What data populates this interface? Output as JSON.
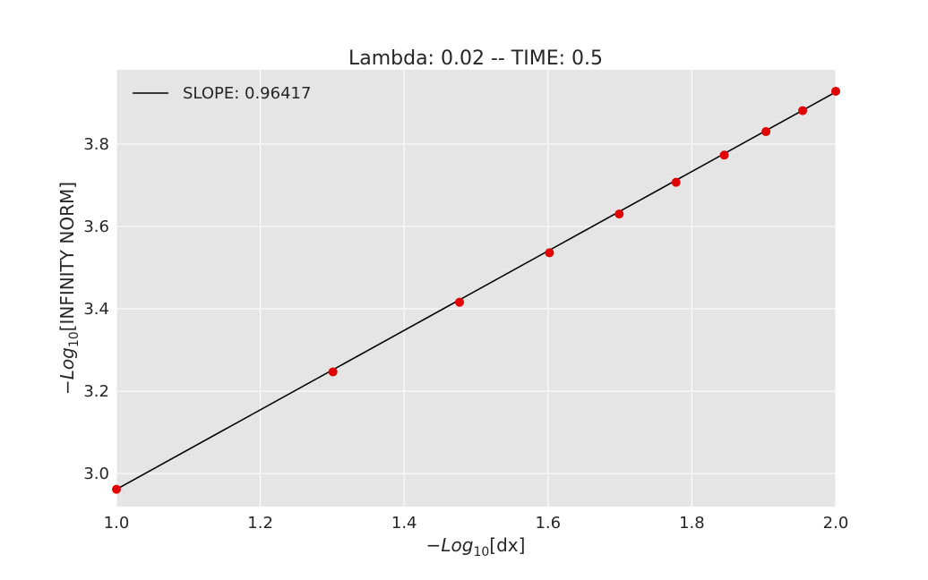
{
  "chart_data": {
    "type": "scatter",
    "title": "Lambda: 0.02 -- TIME: 0.5",
    "xlabel": {
      "prefix": "−Log",
      "subscript": "10",
      "suffix": "[dx]"
    },
    "ylabel": {
      "prefix": "−Log",
      "subscript": "10",
      "suffix": "[INFINITY NORM]"
    },
    "xlim": [
      1.0,
      2.0
    ],
    "ylim": [
      2.92,
      3.98
    ],
    "xticks": [
      "1.0",
      "1.2",
      "1.4",
      "1.6",
      "1.8",
      "2.0"
    ],
    "yticks": [
      "3.0",
      "3.2",
      "3.4",
      "3.6",
      "3.8"
    ],
    "grid": true,
    "legend_position": "top-left",
    "colors": {
      "background": "#e5e5e5",
      "grid": "#ffffff",
      "points": "#e00000",
      "fit_line": "#000000"
    },
    "series": [
      {
        "kind": "points",
        "x": [
          1.0,
          1.301,
          1.477,
          1.602,
          1.699,
          1.778,
          1.845,
          1.903,
          1.954,
          2.0
        ],
        "y": [
          2.962,
          3.247,
          3.416,
          3.536,
          3.63,
          3.707,
          3.773,
          3.83,
          3.881,
          3.928
        ]
      },
      {
        "kind": "line",
        "name": "SLOPE: 0.96417",
        "x": [
          1.0,
          2.0
        ],
        "y": [
          2.962,
          3.926
        ]
      }
    ]
  }
}
